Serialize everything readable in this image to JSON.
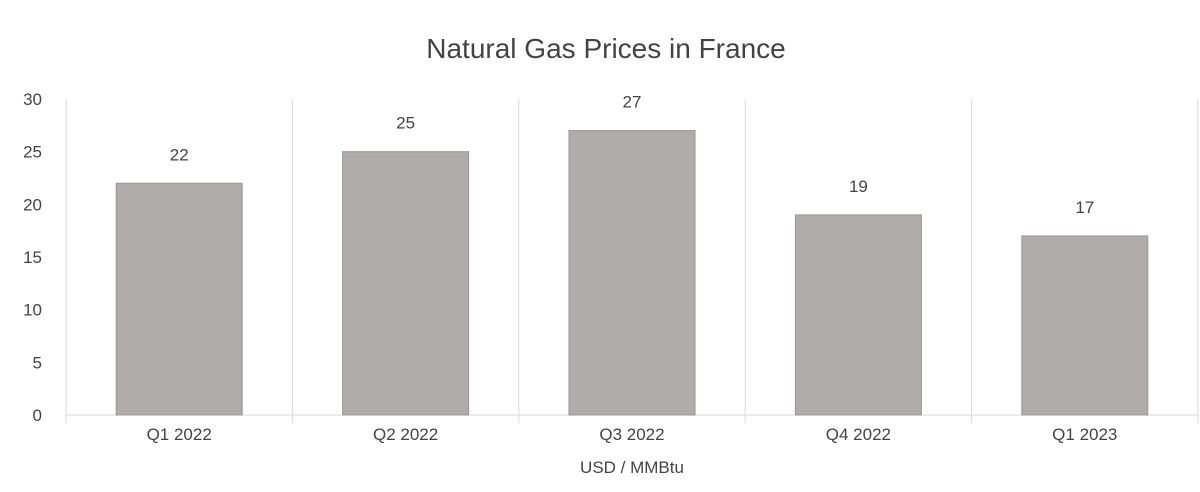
{
  "chart_data": {
    "type": "bar",
    "title": "Natural Gas Prices in France",
    "xlabel": "USD / MMBtu",
    "ylabel": "",
    "categories": [
      "Q1 2022",
      "Q2 2022",
      "Q3 2022",
      "Q4 2022",
      "Q1 2023"
    ],
    "values": [
      22,
      25,
      27,
      19,
      17
    ],
    "ylim": [
      0,
      30
    ],
    "yticks": [
      0,
      5,
      10,
      15,
      20,
      25,
      30
    ],
    "grid": "vertical-category-separators",
    "legend": "none",
    "colors": {
      "bar": "#b0acab",
      "bar_edge": "#9a9695",
      "grid": "#d9d9d9",
      "text": "#444444"
    }
  }
}
